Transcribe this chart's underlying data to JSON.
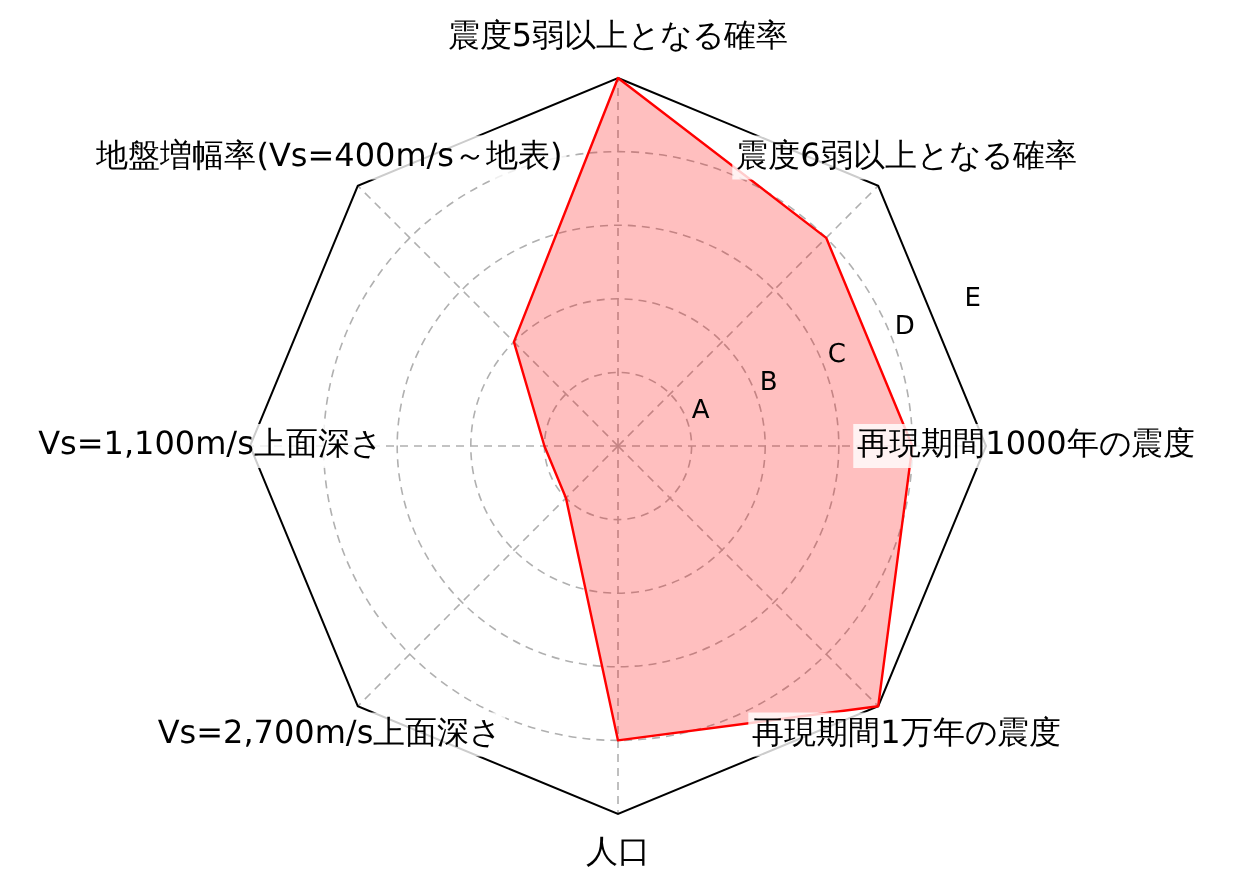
{
  "chart_data": {
    "type": "radar",
    "categories": [
      "震度5弱以上となる確率",
      "震度6弱以上となる確率",
      "再現期間1000年の震度",
      "再現期間1万年の震度",
      "人口",
      "Vs=2,700m/s上面深さ",
      "Vs=1,100m/s上面深さ",
      "地盤増幅率(Vs=400m/s～地表)"
    ],
    "series": [
      {
        "color": "#ff0000",
        "values": [
          5,
          4,
          4,
          5,
          4,
          1,
          1,
          2
        ]
      }
    ],
    "ylim": [
      0,
      5
    ],
    "yticks": [
      {
        "value": 1,
        "label": "A"
      },
      {
        "value": 2,
        "label": "B"
      },
      {
        "value": 3,
        "label": "C"
      },
      {
        "value": 4,
        "label": "D"
      },
      {
        "value": 5,
        "label": "E"
      }
    ],
    "grid": true,
    "legend": false,
    "marker": "none"
  }
}
